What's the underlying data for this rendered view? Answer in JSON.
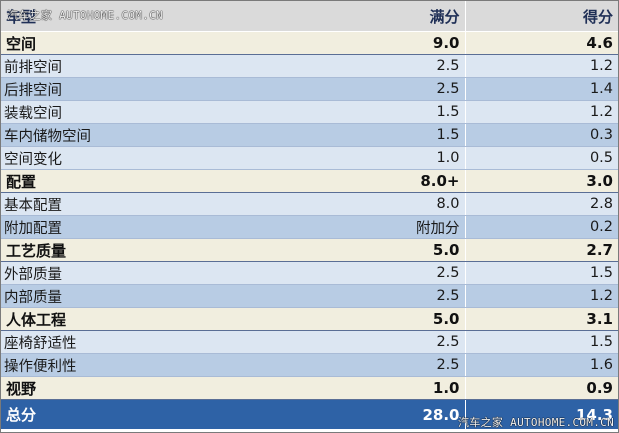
{
  "header": {
    "col_item": "车型",
    "col_full": "满分",
    "col_score": "得分"
  },
  "rows": [
    {
      "type": "cat",
      "label": "空间",
      "full": "9.0",
      "score": "4.6"
    },
    {
      "type": "sub",
      "label": "前排空间",
      "full": "2.5",
      "score": "1.2"
    },
    {
      "type": "sub",
      "label": "后排空间",
      "full": "2.5",
      "score": "1.4"
    },
    {
      "type": "sub",
      "label": "装载空间",
      "full": "1.5",
      "score": "1.2"
    },
    {
      "type": "sub",
      "label": "车内储物空间",
      "full": "1.5",
      "score": "0.3"
    },
    {
      "type": "sub",
      "label": "空间变化",
      "full": "1.0",
      "score": "0.5"
    },
    {
      "type": "cat",
      "label": "配置",
      "full": "8.0+",
      "score": "3.0"
    },
    {
      "type": "sub",
      "label": "基本配置",
      "full": "8.0",
      "score": "2.8"
    },
    {
      "type": "sub",
      "label": "附加配置",
      "full": "附加分",
      "score": "0.2"
    },
    {
      "type": "cat",
      "label": "工艺质量",
      "full": "5.0",
      "score": "2.7"
    },
    {
      "type": "sub",
      "label": "外部质量",
      "full": "2.5",
      "score": "1.5"
    },
    {
      "type": "sub",
      "label": "内部质量",
      "full": "2.5",
      "score": "1.2"
    },
    {
      "type": "cat",
      "label": "人体工程",
      "full": "5.0",
      "score": "3.1"
    },
    {
      "type": "sub",
      "label": "座椅舒适性",
      "full": "2.5",
      "score": "1.5"
    },
    {
      "type": "sub",
      "label": "操作便利性",
      "full": "2.5",
      "score": "1.6"
    },
    {
      "type": "cat",
      "label": "视野",
      "full": "1.0",
      "score": "0.9"
    }
  ],
  "total": {
    "label": "总分",
    "full": "28.0",
    "score": "14.3"
  },
  "watermark": {
    "top": "汽车之家 AUTOHOME.COM.CN",
    "bottom": "汽车之家 AUTOHOME.COM.CN"
  },
  "colors": {
    "header_bg": "#dadada",
    "category_bg": "#f1eedf",
    "sub_bg": "#dce6f2",
    "sub_alt_bg": "#b8cce4",
    "total_bg": "#2e62a6"
  }
}
